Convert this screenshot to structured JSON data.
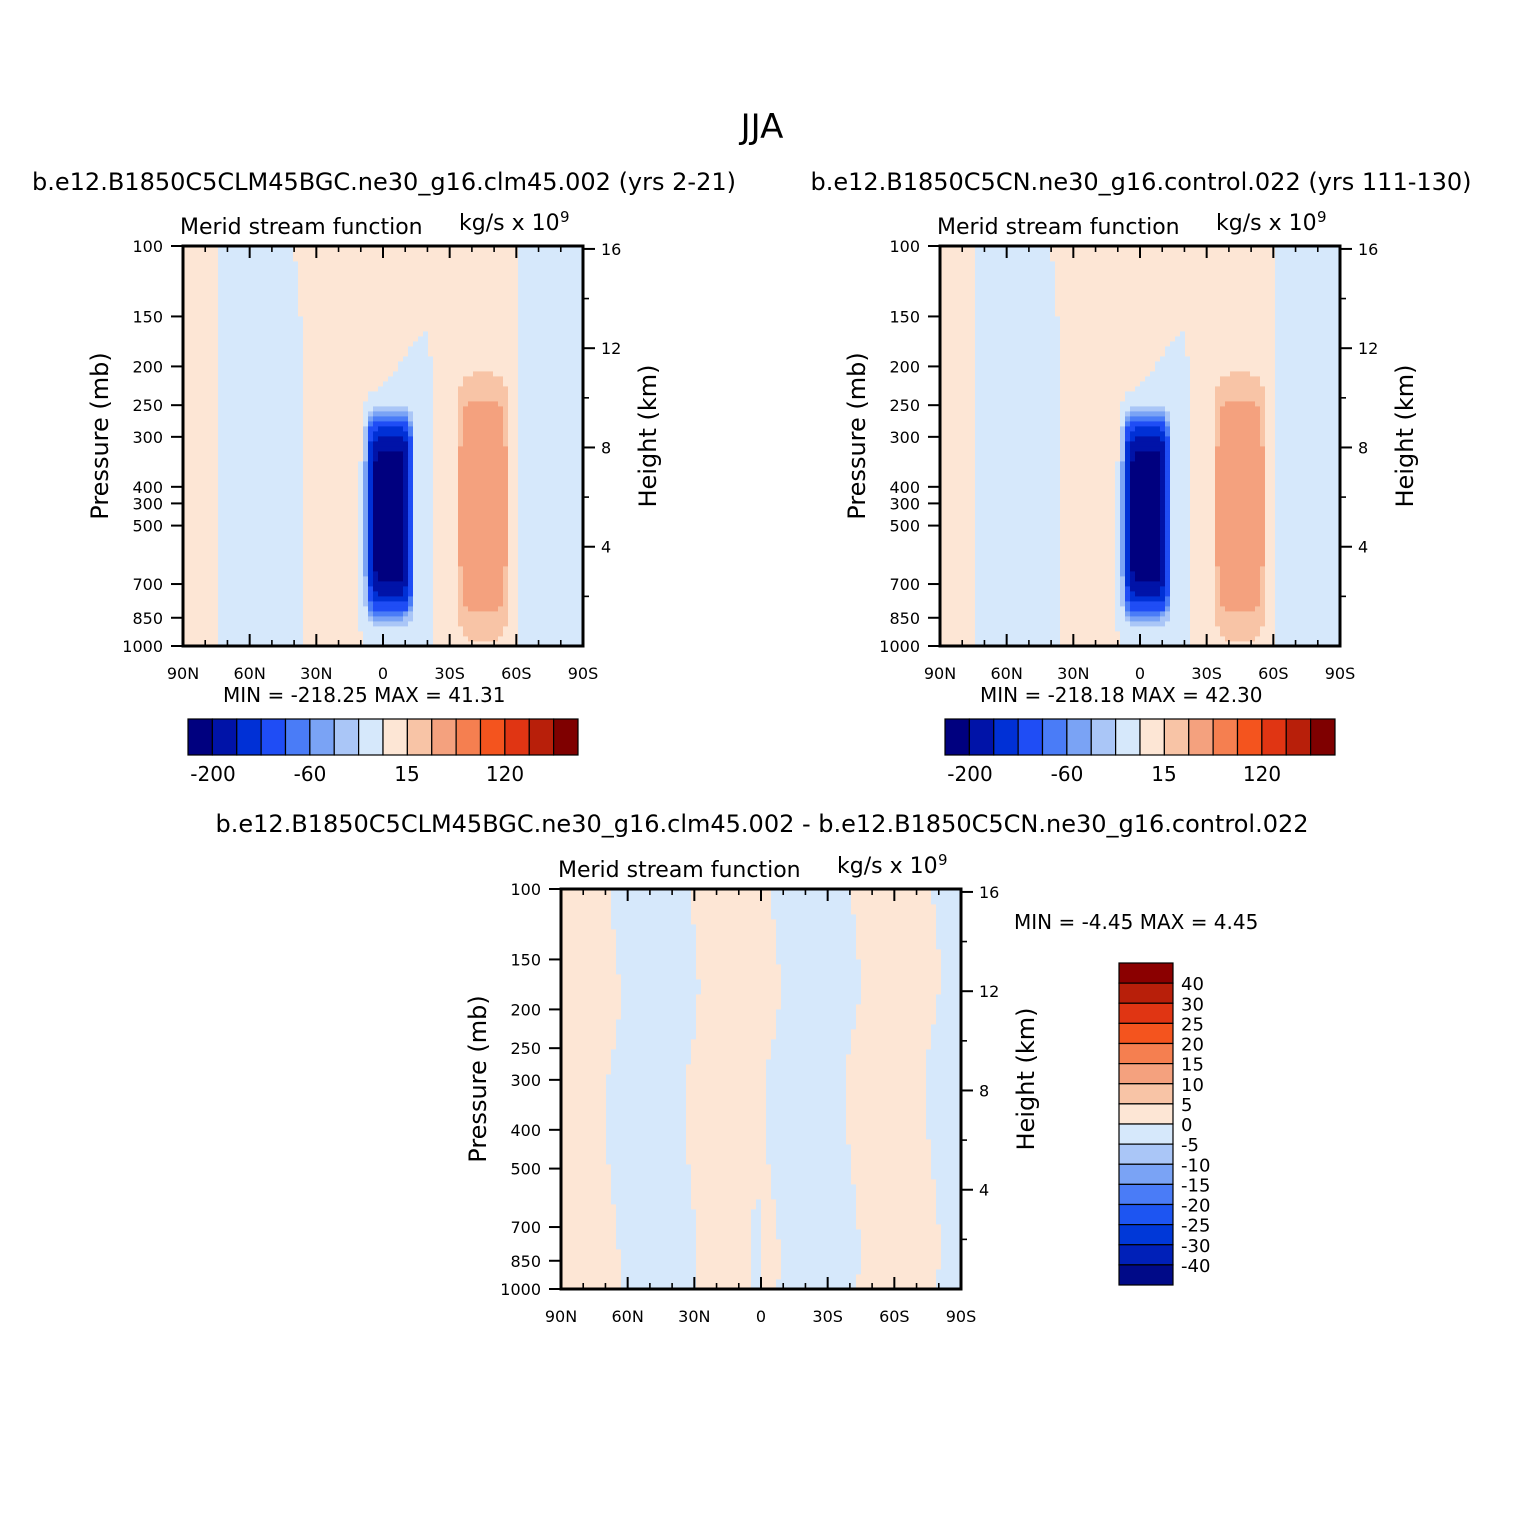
{
  "figure": {
    "title": "JJA"
  },
  "palette": {
    "full": [
      "#00007f",
      "#0013a8",
      "#0030d6",
      "#1f4df5",
      "#4a7cf7",
      "#7aa3f5",
      "#aac6f7",
      "#d6e8fb",
      "#fde6d5",
      "#f8c4a6",
      "#f4a17e",
      "#f57f50",
      "#f4541e",
      "#e03513",
      "#b81f0a",
      "#7f0000"
    ],
    "diff": [
      "#000a88",
      "#0020b8",
      "#0038d8",
      "#1d55f2",
      "#4a7cf7",
      "#7aa3f5",
      "#aac6f7",
      "#d6e8fb",
      "#fde6d5",
      "#f8c4a6",
      "#f4a17e",
      "#f57f50",
      "#f4541e",
      "#e03513",
      "#b81f0a",
      "#8b0000"
    ]
  },
  "chart_data": [
    {
      "type": "heatmap",
      "panel_title": "b.e12.B1850C5CLM45BGC.ne30_g16.clm45.002 (yrs 2-21)",
      "title": "Merid stream function",
      "units": "kg/s x 10",
      "units_exp": "9",
      "xlabel": "",
      "ylabel": "Pressure (mb)",
      "ylabel_right": "Height (km)",
      "x_ticks": [
        "90N",
        "60N",
        "30N",
        "0",
        "30S",
        "60S",
        "90S"
      ],
      "y_ticks": [
        "100",
        "150",
        "200",
        "250",
        "300",
        "300",
        "400",
        "500",
        "700",
        "850",
        "1000"
      ],
      "y_right_ticks": [
        "16",
        "12",
        "8",
        "4"
      ],
      "xlim": [
        90,
        -90
      ],
      "ylim": [
        1000,
        100
      ],
      "y_scale": "log",
      "stats": "MIN = -218.25   MAX =  41.31",
      "colorbar": {
        "orientation": "horizontal",
        "labels": [
          "-200",
          "-60",
          "15",
          "120"
        ]
      },
      "extrema": {
        "min": -218.25,
        "max": 41.31
      }
    },
    {
      "type": "heatmap",
      "panel_title": "b.e12.B1850C5CN.ne30_g16.control.022 (yrs 111-130)",
      "title": "Merid stream function",
      "units": "kg/s x 10",
      "units_exp": "9",
      "xlabel": "",
      "ylabel": "Pressure (mb)",
      "ylabel_right": "Height (km)",
      "x_ticks": [
        "90N",
        "60N",
        "30N",
        "0",
        "30S",
        "60S",
        "90S"
      ],
      "y_ticks": [
        "100",
        "150",
        "200",
        "250",
        "300",
        "300",
        "400",
        "500",
        "700",
        "850",
        "1000"
      ],
      "y_right_ticks": [
        "16",
        "12",
        "8",
        "4"
      ],
      "xlim": [
        90,
        -90
      ],
      "ylim": [
        1000,
        100
      ],
      "y_scale": "log",
      "stats": "MIN = -218.18   MAX =  42.30",
      "colorbar": {
        "orientation": "horizontal",
        "labels": [
          "-200",
          "-60",
          "15",
          "120"
        ]
      },
      "extrema": {
        "min": -218.18,
        "max": 42.3
      }
    },
    {
      "type": "heatmap",
      "panel_title": "b.e12.B1850C5CLM45BGC.ne30_g16.clm45.002 - b.e12.B1850C5CN.ne30_g16.control.022",
      "title": "Merid stream function",
      "units": "kg/s x 10",
      "units_exp": "9",
      "xlabel": "",
      "ylabel": "Pressure (mb)",
      "ylabel_right": "Height (km)",
      "x_ticks": [
        "90N",
        "60N",
        "30N",
        "0",
        "30S",
        "60S",
        "90S"
      ],
      "y_ticks": [
        "100",
        "150",
        "200",
        "250",
        "300",
        "400",
        "500",
        "700",
        "850",
        "1000"
      ],
      "y_right_ticks": [
        "16",
        "12",
        "8",
        "4"
      ],
      "xlim": [
        90,
        -90
      ],
      "ylim": [
        1000,
        100
      ],
      "y_scale": "log",
      "stats": "MIN =   -4.45   MAX =    4.45",
      "colorbar": {
        "orientation": "vertical",
        "levels": [
          "40",
          "30",
          "25",
          "20",
          "15",
          "10",
          "5",
          "0",
          "-5",
          "-10",
          "-15",
          "-20",
          "-25",
          "-30",
          "-40"
        ]
      },
      "extrema": {
        "min": -4.45,
        "max": 4.45
      }
    }
  ]
}
